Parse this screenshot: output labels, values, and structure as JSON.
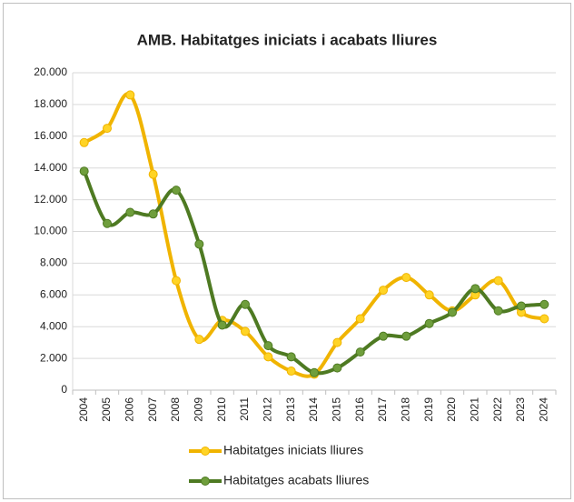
{
  "chart_data": {
    "type": "line",
    "title": "AMB. Habitatges iniciats i acabats lliures",
    "categories": [
      "2004",
      "2005",
      "2006",
      "2007",
      "2008",
      "2009",
      "2010",
      "2011",
      "2012",
      "2013",
      "2014",
      "2015",
      "2016",
      "2017",
      "2018",
      "2019",
      "2020",
      "2021",
      "2022",
      "2023",
      "2024"
    ],
    "series": [
      {
        "name": "Habitatges iniciats lliures",
        "color": "#f0b400",
        "marker_color": "#ffd426",
        "values": [
          15600,
          16500,
          18600,
          13600,
          6900,
          3200,
          4400,
          3700,
          2100,
          1200,
          1000,
          3000,
          4500,
          6300,
          7100,
          6000,
          5000,
          6000,
          6900,
          4900,
          4500
        ]
      },
      {
        "name": "Habitatges acabats lliures",
        "color": "#4e7a22",
        "marker_color": "#6f9e3c",
        "values": [
          13800,
          10500,
          11200,
          11100,
          12600,
          9200,
          4100,
          5400,
          2800,
          2100,
          1100,
          1400,
          2400,
          3400,
          3400,
          4200,
          4900,
          6400,
          5000,
          5300,
          5400
        ]
      }
    ],
    "ylim": [
      0,
      20000
    ],
    "yticks": [
      0,
      {
        "value": 2000,
        "label": "2.000"
      },
      {
        "value": 4000,
        "label": "4.000"
      },
      {
        "value": 6000,
        "label": "6.000"
      },
      {
        "value": 8000,
        "label": "8.000"
      },
      {
        "value": 10000,
        "label": "10.000"
      },
      {
        "value": 12000,
        "label": "12.000"
      },
      {
        "value": 14000,
        "label": "14.000"
      },
      {
        "value": 16000,
        "label": "16.000"
      },
      {
        "value": 18000,
        "label": "18.000"
      },
      {
        "value": 20000,
        "label": "20.000"
      }
    ],
    "grid": true,
    "smooth": true,
    "legend": "bottom"
  }
}
